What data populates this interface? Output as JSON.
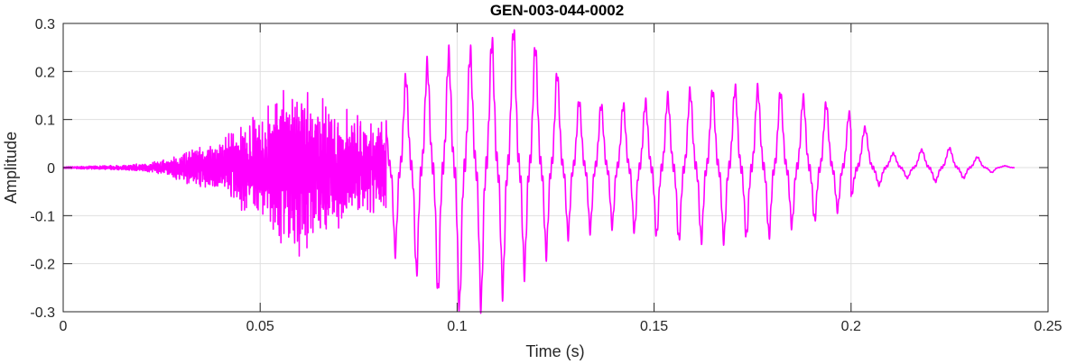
{
  "chart_data": {
    "type": "line",
    "title": "GEN-003-044-0002",
    "xlabel": "Time (s)",
    "ylabel": "Amplitude",
    "xlim": [
      0,
      0.25
    ],
    "ylim": [
      -0.3,
      0.3
    ],
    "x_ticks": [
      0,
      0.05,
      0.1,
      0.15,
      0.2,
      0.25
    ],
    "x_tick_labels": [
      "0",
      "0.05",
      "0.1",
      "0.15",
      "0.2",
      "0.25"
    ],
    "y_ticks": [
      0.3,
      0.2,
      0.1,
      0,
      -0.1,
      -0.2,
      -0.3
    ],
    "y_tick_labels": [
      "0.3",
      "0.2",
      "0.1",
      "0",
      "-0.1",
      "-0.2",
      "-0.3"
    ],
    "grid": true,
    "legend": "none",
    "series": [
      {
        "color": "#ff00ff",
        "x": [
          0,
          0.01,
          0.02,
          0.025,
          0.03,
          0.035,
          0.04,
          0.045,
          0.05,
          0.055,
          0.06,
          0.065,
          0.07,
          0.075,
          0.08,
          0.085,
          0.09,
          0.095,
          0.1,
          0.105,
          0.11,
          0.115,
          0.12,
          0.125,
          0.13,
          0.135,
          0.14,
          0.145,
          0.15,
          0.155,
          0.16,
          0.165,
          0.17,
          0.175,
          0.18,
          0.185,
          0.19,
          0.195,
          0.2,
          0.205,
          0.21,
          0.215,
          0.22,
          0.225,
          0.23,
          0.235,
          0.2415
        ],
        "upper": [
          0.002,
          0.004,
          0.008,
          0.015,
          0.03,
          0.045,
          0.06,
          0.1,
          0.12,
          0.185,
          0.16,
          0.15,
          0.12,
          0.11,
          0.09,
          0.18,
          0.2,
          0.23,
          0.24,
          0.24,
          0.27,
          0.29,
          0.25,
          0.2,
          0.14,
          0.13,
          0.13,
          0.13,
          0.14,
          0.15,
          0.16,
          0.16,
          0.165,
          0.165,
          0.16,
          0.15,
          0.14,
          0.13,
          0.11,
          0.07,
          0.03,
          0.025,
          0.045,
          0.04,
          0.03,
          0.01,
          0.0
        ],
        "lower": [
          -0.002,
          -0.004,
          -0.008,
          -0.015,
          -0.03,
          -0.045,
          -0.05,
          -0.09,
          -0.11,
          -0.16,
          -0.18,
          -0.16,
          -0.12,
          -0.11,
          -0.09,
          -0.19,
          -0.22,
          -0.26,
          -0.29,
          -0.29,
          -0.27,
          -0.23,
          -0.2,
          -0.16,
          -0.13,
          -0.13,
          -0.12,
          -0.13,
          -0.14,
          -0.15,
          -0.15,
          -0.15,
          -0.15,
          -0.14,
          -0.14,
          -0.12,
          -0.11,
          -0.1,
          -0.06,
          -0.04,
          -0.03,
          -0.02,
          -0.03,
          -0.025,
          -0.02,
          -0.01,
          -0.01
        ]
      }
    ]
  }
}
